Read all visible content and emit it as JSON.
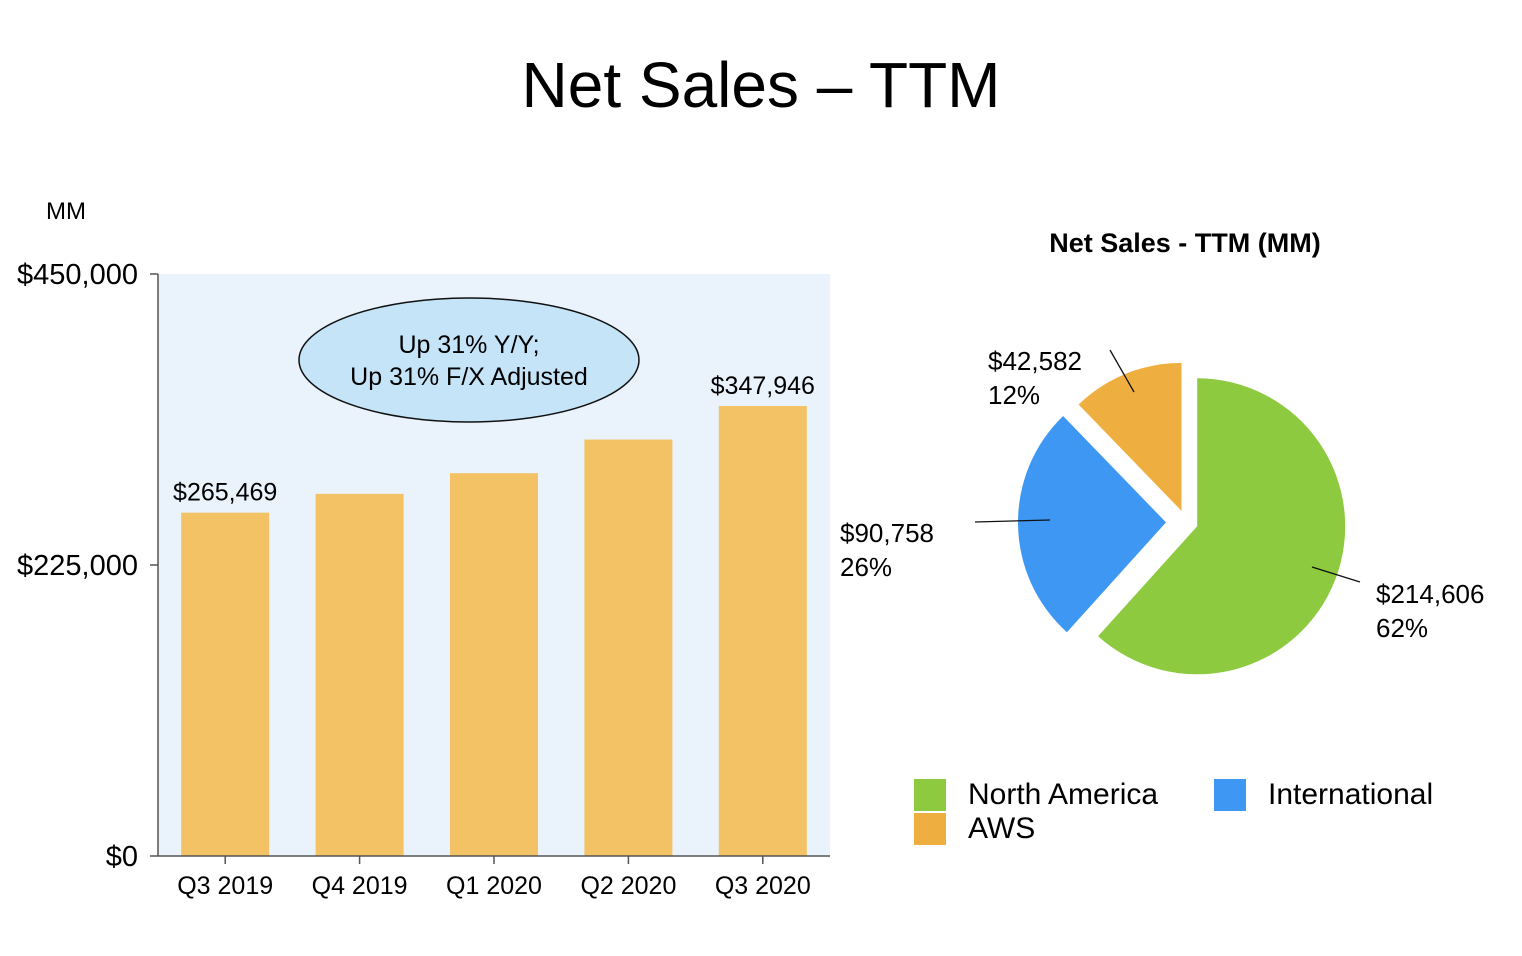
{
  "title": "Net Sales – TTM",
  "unit_label": "MM",
  "colors": {
    "bar": "#F2C265",
    "plot_bg": "#EAF2FB",
    "callout_fill": "#C5E4F8",
    "north_america": "#8DCA40",
    "international": "#3E97F2",
    "aws": "#EFAF40"
  },
  "chart_data": [
    {
      "type": "bar",
      "categories": [
        "Q3 2019",
        "Q4 2019",
        "Q1 2020",
        "Q2 2020",
        "Q3 2020"
      ],
      "values": [
        265469,
        280000,
        296000,
        322000,
        347946
      ],
      "data_labels": [
        "$265,469",
        "",
        "",
        "",
        "$347,946"
      ],
      "ylim": [
        0,
        450000
      ],
      "yticks": [
        0,
        225000,
        450000
      ],
      "ytick_labels": [
        "$0",
        "$225,000",
        "$450,000"
      ],
      "ylabel": "MM",
      "callout": [
        "Up 31% Y/Y;",
        "Up 31% F/X Adjusted"
      ],
      "grid": false
    },
    {
      "type": "pie",
      "title": "Net Sales - TTM (MM)",
      "slices": [
        {
          "name": "North America",
          "value": 214606,
          "value_label": "$214,606",
          "pct_label": "62%",
          "color": "#8DCA40"
        },
        {
          "name": "International",
          "value": 90758,
          "value_label": "$90,758",
          "pct_label": "26%",
          "color": "#3E97F2"
        },
        {
          "name": "AWS",
          "value": 42582,
          "value_label": "$42,582",
          "pct_label": "12%",
          "color": "#EFAF40"
        }
      ],
      "legend_position": "bottom",
      "legend": [
        "North America",
        "International",
        "AWS"
      ]
    }
  ]
}
